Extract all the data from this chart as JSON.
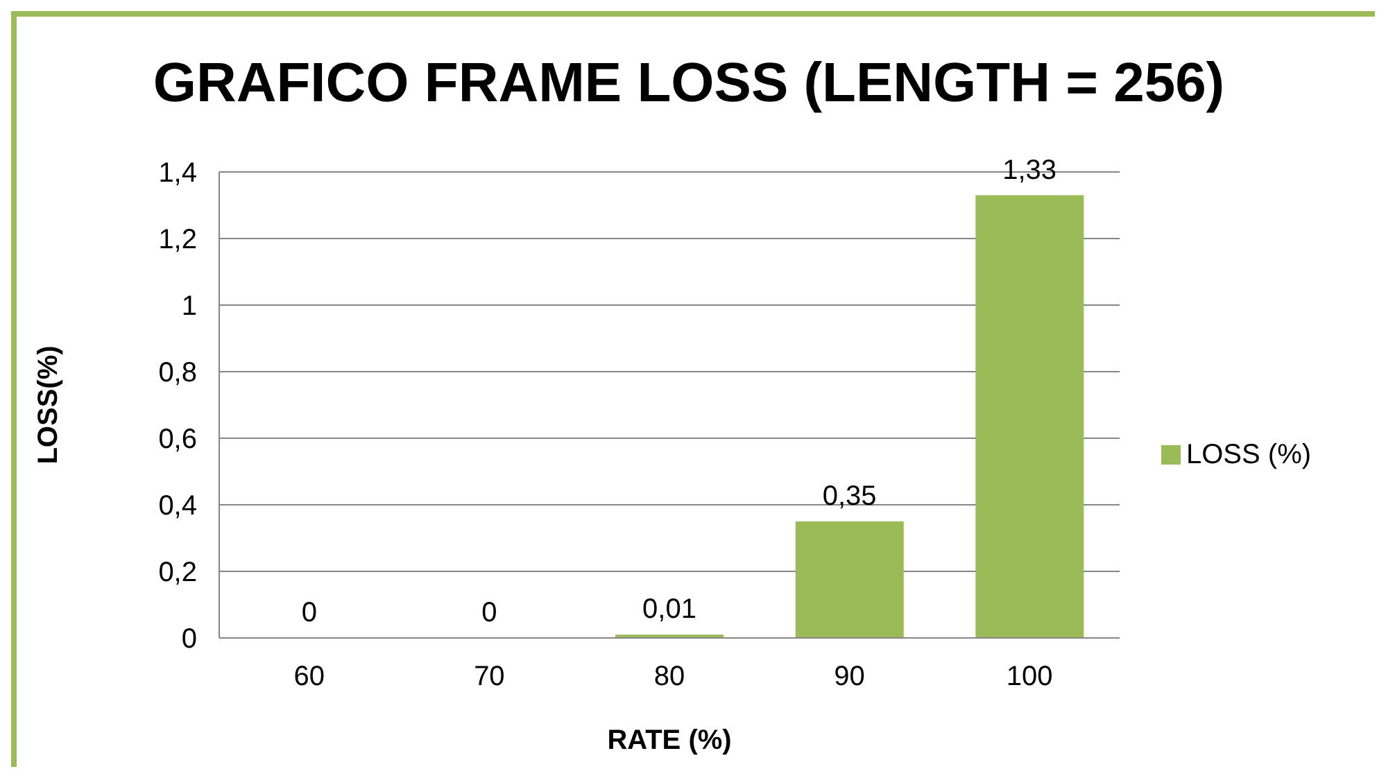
{
  "chart_data": {
    "type": "bar",
    "title": "GRAFICO FRAME LOSS (LENGTH = 256)",
    "xlabel": "RATE (%)",
    "ylabel": "LOSS(%)",
    "categories": [
      "60",
      "70",
      "80",
      "90",
      "100"
    ],
    "series": [
      {
        "name": "LOSS (%)",
        "color": "#9bbb59",
        "values": [
          0,
          0,
          0.01,
          0.35,
          1.33
        ],
        "value_labels": [
          "0",
          "0",
          "0,01",
          "0,35",
          "1,33"
        ]
      }
    ],
    "ylim": [
      0,
      1.4
    ],
    "yticks": [
      0,
      {
        "value": 0.2,
        "label": "0,2"
      },
      {
        "value": 0.4,
        "label": "0,4"
      },
      {
        "value": 0.6,
        "label": "0,6"
      },
      {
        "value": 0.8,
        "label": "0,8"
      },
      1,
      {
        "value": 1.2,
        "label": "1,2"
      },
      {
        "value": 1.4,
        "label": "1,4"
      }
    ],
    "grid": "y",
    "legend": "right"
  }
}
